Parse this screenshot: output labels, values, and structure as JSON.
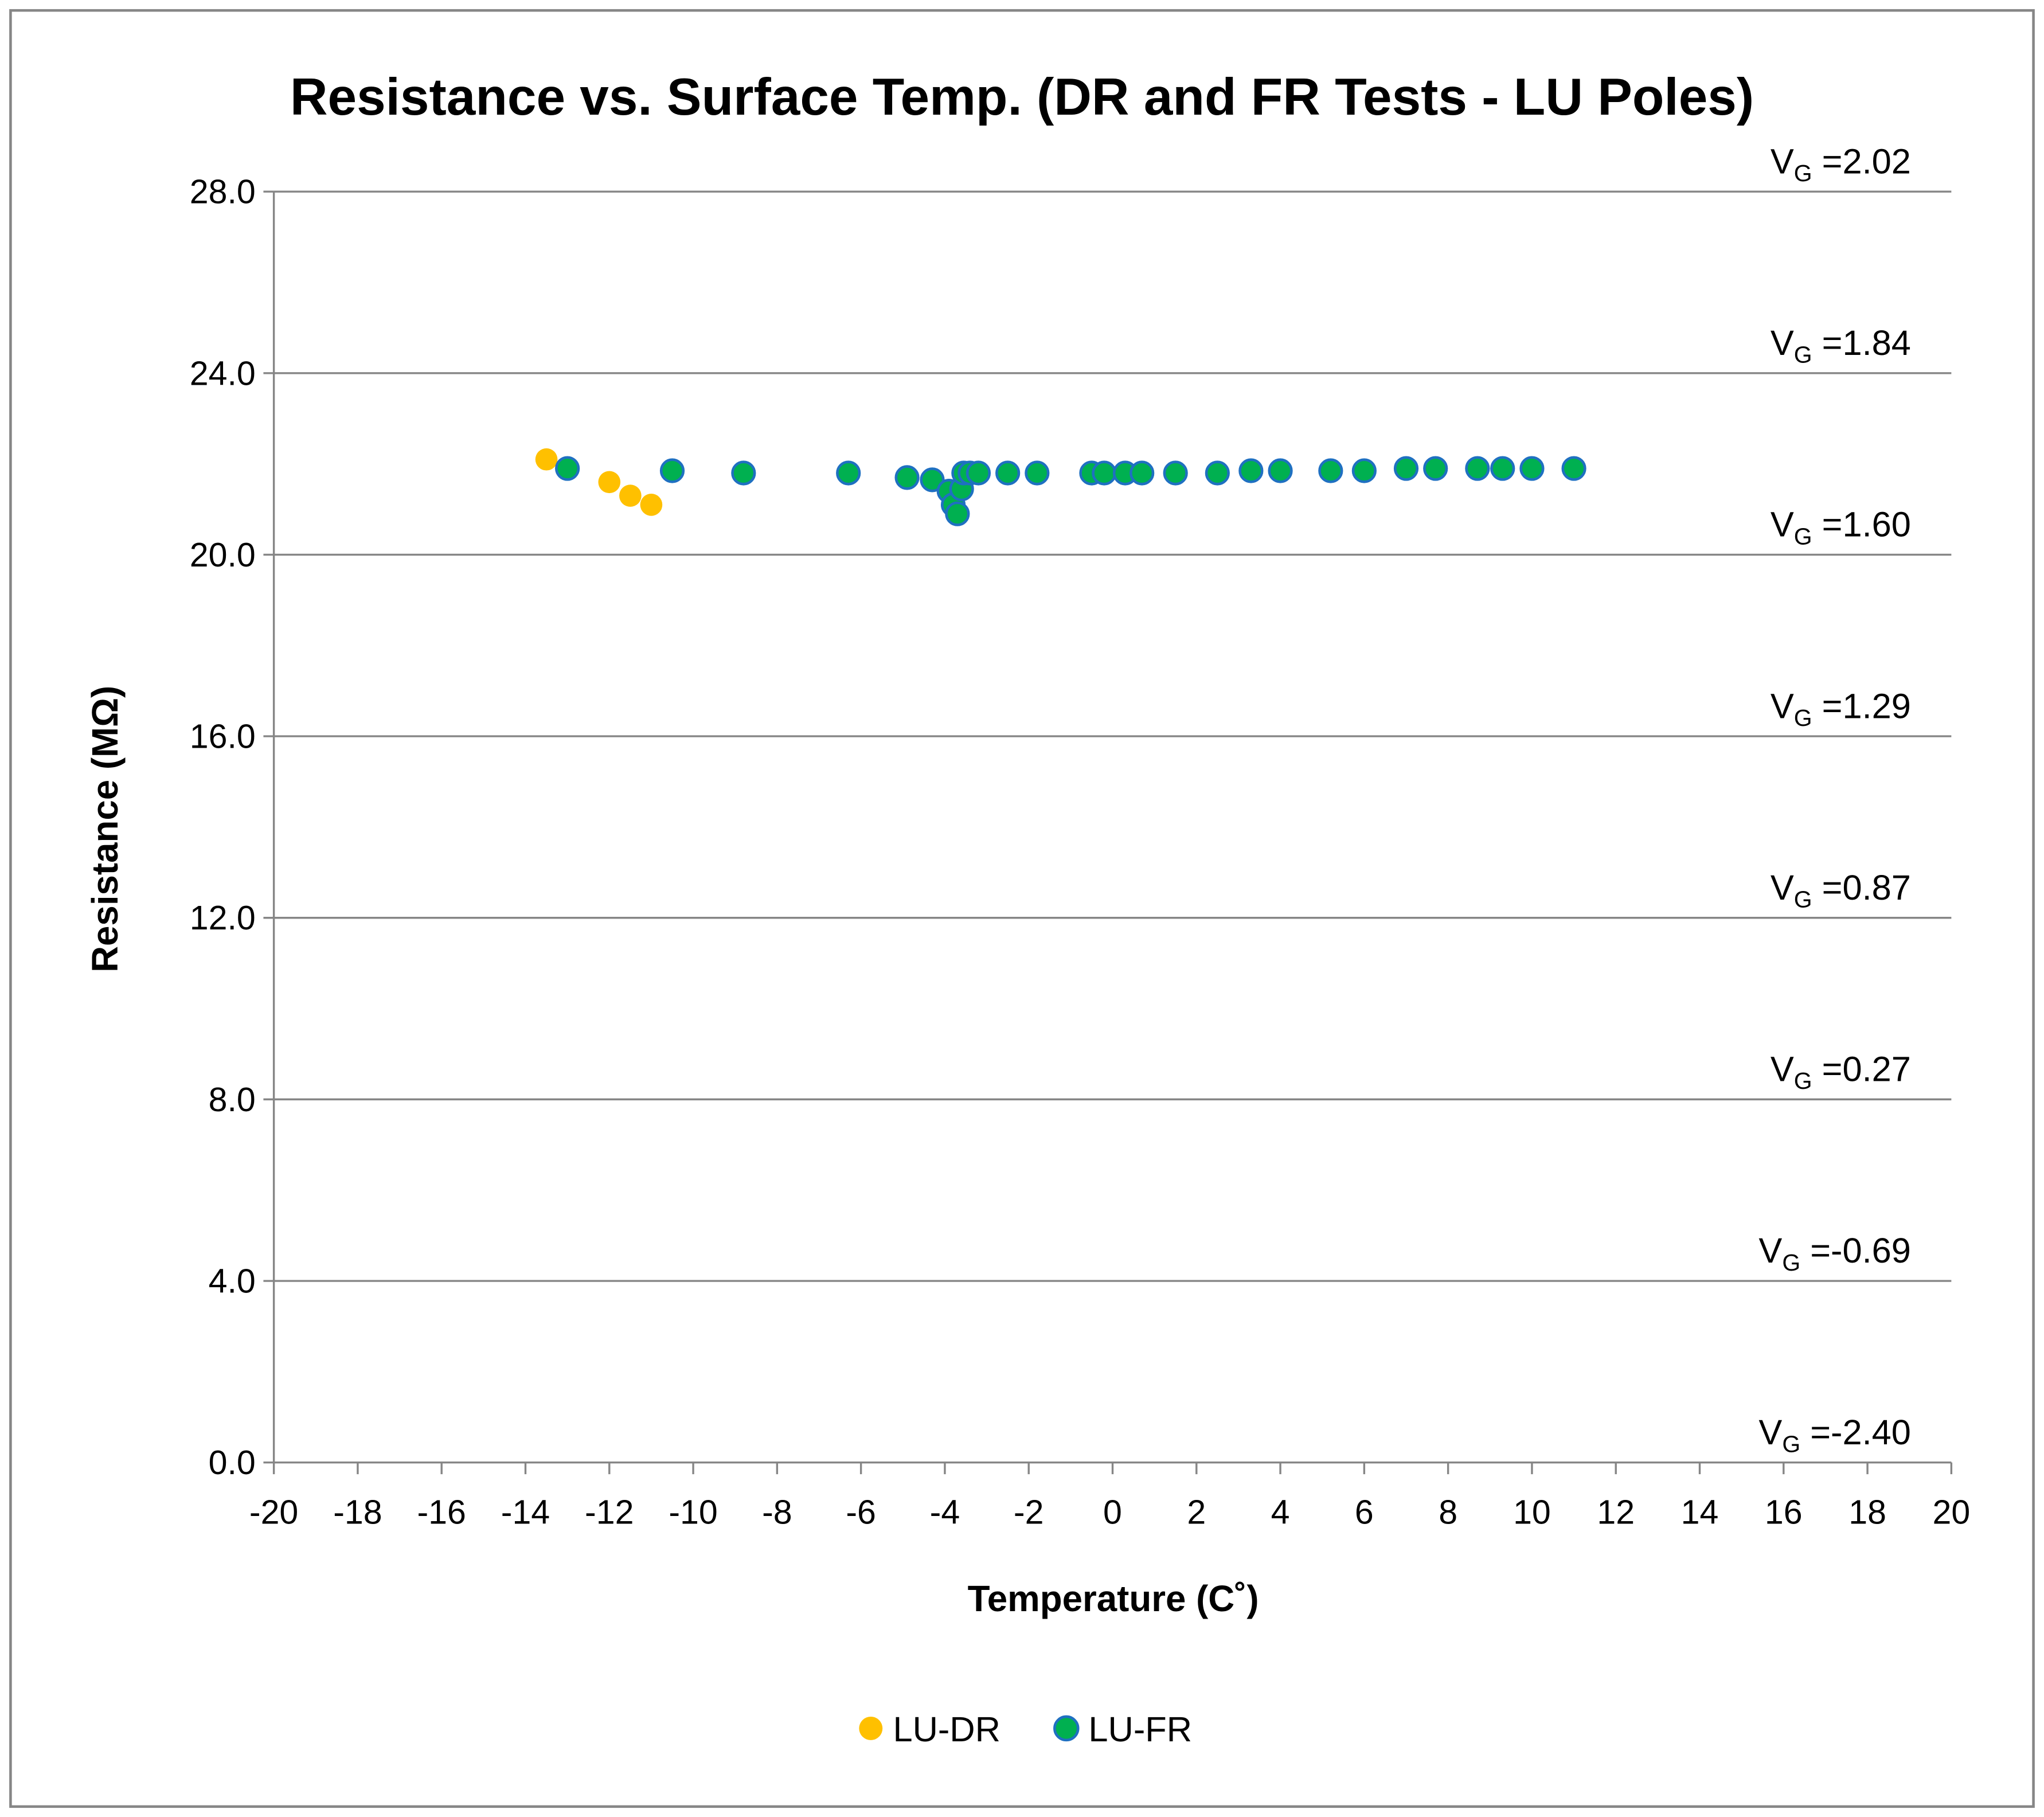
{
  "chart_data": {
    "type": "scatter",
    "title": "Resistance vs. Surface Temp. (DR and FR Tests - LU Poles)",
    "xlabel": "Temperature (C˚)",
    "ylabel": "Resistance (MΩ)",
    "xlim": [
      -20,
      20
    ],
    "ylim": [
      0,
      28
    ],
    "x_ticks": [
      "-20",
      "-18",
      "-16",
      "-14",
      "-12",
      "-10",
      "-8",
      "-6",
      "-4",
      "-2",
      "0",
      "2",
      "4",
      "6",
      "8",
      "10",
      "12",
      "14",
      "16",
      "18",
      "20"
    ],
    "y_ticks": [
      "0.0",
      "4.0",
      "8.0",
      "12.0",
      "16.0",
      "20.0",
      "24.0",
      "28.0"
    ],
    "grid": "horizontal",
    "legend_position": "bottom",
    "series": [
      {
        "name": "LU-DR",
        "color": "#FFC000",
        "x": [
          -13.5,
          -12.0,
          -11.5,
          -11.0
        ],
        "y": [
          22.1,
          21.6,
          21.3,
          21.1
        ]
      },
      {
        "name": "LU-FR",
        "color": "#00B050",
        "edge_color": "#1F70C1",
        "x": [
          -13.0,
          -10.5,
          -8.8,
          -6.3,
          -4.9,
          -4.3,
          -3.9,
          -3.8,
          -3.7,
          -3.6,
          -3.55,
          -3.4,
          -3.2,
          -2.5,
          -1.8,
          -0.5,
          -0.2,
          0.3,
          0.7,
          1.5,
          2.5,
          3.3,
          4.0,
          5.2,
          6.0,
          7.0,
          7.7,
          8.7,
          9.3,
          10.0,
          11.0
        ],
        "y": [
          21.9,
          21.85,
          21.8,
          21.8,
          21.7,
          21.65,
          21.4,
          21.1,
          20.9,
          21.45,
          21.8,
          21.8,
          21.8,
          21.8,
          21.8,
          21.8,
          21.8,
          21.8,
          21.8,
          21.8,
          21.8,
          21.85,
          21.85,
          21.85,
          21.85,
          21.9,
          21.9,
          21.9,
          21.9,
          21.9,
          21.9
        ]
      }
    ],
    "annotations": {
      "prefix": "V",
      "subscript": "G",
      "items": [
        {
          "y": 0,
          "text": " =-2.40"
        },
        {
          "y": 4,
          "text": " =-0.69"
        },
        {
          "y": 8,
          "text": " =0.27"
        },
        {
          "y": 12,
          "text": " =0.87"
        },
        {
          "y": 16,
          "text": " =1.29"
        },
        {
          "y": 20,
          "text": " =1.60"
        },
        {
          "y": 24,
          "text": " =1.84"
        },
        {
          "y": 28,
          "text": " =2.02"
        }
      ]
    }
  }
}
